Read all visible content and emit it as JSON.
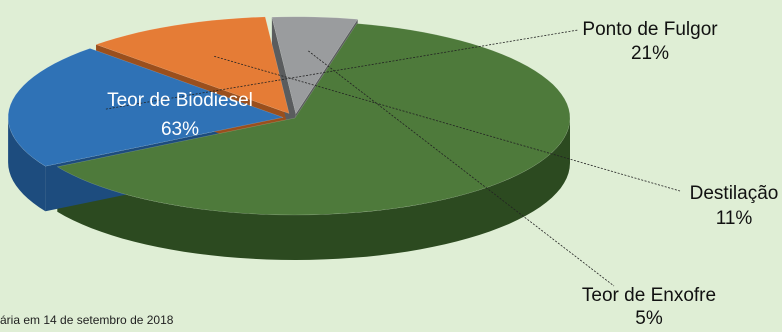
{
  "source_note": "ária em 14 de setembro de 2018",
  "chart_data": {
    "type": "pie",
    "style": "3d-exploded",
    "legend": "none",
    "slices": [
      {
        "label": "Teor de Biodiesel",
        "value": 63,
        "value_text": "63%",
        "color": "#4e7a3b",
        "side_color": "#2c4a20"
      },
      {
        "label": "Ponto de Fulgor",
        "value": 21,
        "value_text": "21%",
        "color": "#2f72b6",
        "side_color": "#1d4c7e"
      },
      {
        "label": "Destilação",
        "value": 11,
        "value_text": "11%",
        "color": "#e57c36",
        "side_color": "#9a4f1d"
      },
      {
        "label": "Teor de Enxofre",
        "value": 5,
        "value_text": "5%",
        "color": "#9a9c9e",
        "side_color": "#5a5c5e"
      }
    ]
  }
}
